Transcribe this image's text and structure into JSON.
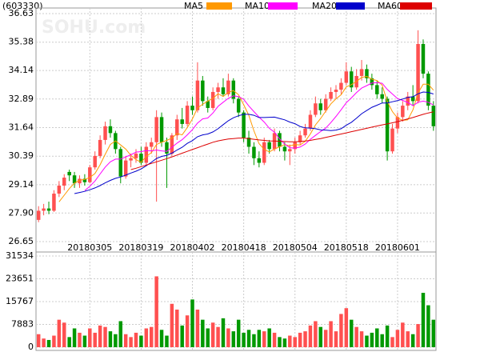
{
  "chart_data": {
    "type": "candlestick",
    "title": "(603330)",
    "watermark": "SOHU.com",
    "categories": [
      null,
      null,
      null,
      null,
      null,
      null,
      null,
      null,
      null,
      null,
      "20180305",
      null,
      null,
      null,
      null,
      null,
      null,
      null,
      null,
      null,
      "20180319",
      null,
      null,
      null,
      null,
      null,
      null,
      null,
      null,
      null,
      "20180402",
      null,
      null,
      null,
      null,
      null,
      null,
      null,
      null,
      null,
      "20180418",
      null,
      null,
      null,
      null,
      null,
      null,
      null,
      null,
      null,
      "20180504",
      null,
      null,
      null,
      null,
      null,
      null,
      null,
      null,
      null,
      "20180518",
      null,
      null,
      null,
      null,
      null,
      null,
      null,
      null,
      null,
      "20180601",
      null,
      null,
      null,
      null,
      null,
      null,
      null
    ],
    "open": [
      27.6,
      28.0,
      28.1,
      28.0,
      28.75,
      29.1,
      29.7,
      29.55,
      29.2,
      29.4,
      29.25,
      29.9,
      30.4,
      31.1,
      31.7,
      31.4,
      30.7,
      29.5,
      30.2,
      30.3,
      30.5,
      30.1,
      30.8,
      31.0,
      32.1,
      31.0,
      30.5,
      31.3,
      32.0,
      31.8,
      32.6,
      32.4,
      33.7,
      32.8,
      32.5,
      33.2,
      33.4,
      33.1,
      33.7,
      32.9,
      32.3,
      31.2,
      30.8,
      30.3,
      30.1,
      31.0,
      30.7,
      31.4,
      30.8,
      30.6,
      30.7,
      31.0,
      31.3,
      31.6,
      32.2,
      32.7,
      32.4,
      32.9,
      33.2,
      33.3,
      33.6,
      34.1,
      33.4,
      33.9,
      34.2,
      33.8,
      33.5,
      33.1,
      32.9,
      30.6,
      31.6,
      32.1,
      32.6,
      33.0,
      32.8,
      35.3,
      34.0,
      32.6
    ],
    "high": [
      28.2,
      28.3,
      28.4,
      28.9,
      29.3,
      29.6,
      29.8,
      29.7,
      29.55,
      29.6,
      30.0,
      30.6,
      31.3,
      31.9,
      32.0,
      31.5,
      30.8,
      30.4,
      30.5,
      30.7,
      30.8,
      31.0,
      31.2,
      32.4,
      32.3,
      31.2,
      31.4,
      32.2,
      32.5,
      32.8,
      33.0,
      34.5,
      33.9,
      33.0,
      33.4,
      33.6,
      33.8,
      34.0,
      33.8,
      33.0,
      32.4,
      31.5,
      31.0,
      30.6,
      31.2,
      31.1,
      31.6,
      31.5,
      31.0,
      30.9,
      31.2,
      31.5,
      31.8,
      32.4,
      33.0,
      32.9,
      33.1,
      33.4,
      33.5,
      33.8,
      34.5,
      34.3,
      34.2,
      34.6,
      34.4,
      34.0,
      33.7,
      33.4,
      33.0,
      31.8,
      32.3,
      32.8,
      33.2,
      33.5,
      35.9,
      35.5,
      34.1,
      32.8
    ],
    "low": [
      27.5,
      27.8,
      27.85,
      27.95,
      28.6,
      28.9,
      29.3,
      29.0,
      29.0,
      29.1,
      29.2,
      29.8,
      30.3,
      30.9,
      31.2,
      30.5,
      29.2,
      29.4,
      29.9,
      30.1,
      30.0,
      30.0,
      30.5,
      28.4,
      30.8,
      29.0,
      30.4,
      31.1,
      31.6,
      31.7,
      32.2,
      32.3,
      32.6,
      32.3,
      32.4,
      32.9,
      33.0,
      33.0,
      32.7,
      32.1,
      31.0,
      30.5,
      30.0,
      29.9,
      30.0,
      30.5,
      30.6,
      30.6,
      30.2,
      30.0,
      30.5,
      30.9,
      31.2,
      31.5,
      32.1,
      32.2,
      32.3,
      32.8,
      32.9,
      33.1,
      33.5,
      33.2,
      33.3,
      33.7,
      33.6,
      33.3,
      32.9,
      32.7,
      30.2,
      30.5,
      31.4,
      31.9,
      32.4,
      32.6,
      32.7,
      33.8,
      32.4,
      31.5
    ],
    "close": [
      28.0,
      28.1,
      28.0,
      28.75,
      29.1,
      29.45,
      29.55,
      29.2,
      29.4,
      29.25,
      29.9,
      30.4,
      31.1,
      31.7,
      31.4,
      30.7,
      29.5,
      30.2,
      30.3,
      30.5,
      30.1,
      30.8,
      31.0,
      32.1,
      31.0,
      30.5,
      31.3,
      32.0,
      31.8,
      32.6,
      32.4,
      33.7,
      32.8,
      32.5,
      33.2,
      33.4,
      33.1,
      33.7,
      32.9,
      32.3,
      31.2,
      30.8,
      30.3,
      30.1,
      31.0,
      30.7,
      31.4,
      30.8,
      30.6,
      30.7,
      31.0,
      31.3,
      31.6,
      32.2,
      32.7,
      32.4,
      32.9,
      33.2,
      33.3,
      33.6,
      34.1,
      33.4,
      33.9,
      34.2,
      33.8,
      33.5,
      33.1,
      32.9,
      30.6,
      31.6,
      32.1,
      32.6,
      33.0,
      32.8,
      35.3,
      34.0,
      32.6,
      31.7
    ],
    "volume": [
      4500,
      3000,
      2500,
      4000,
      9500,
      8500,
      3500,
      6500,
      5000,
      4000,
      6500,
      5000,
      7500,
      7000,
      5500,
      4500,
      9000,
      4500,
      3500,
      5000,
      4000,
      6500,
      7000,
      24500,
      6000,
      4000,
      15000,
      13000,
      7500,
      11000,
      16500,
      13000,
      9500,
      6500,
      8500,
      7000,
      10000,
      6500,
      5500,
      9500,
      5000,
      6000,
      4500,
      6000,
      5500,
      6500,
      5000,
      3500,
      3000,
      4000,
      3500,
      5000,
      5500,
      7500,
      9000,
      7000,
      6000,
      9000,
      5500,
      11500,
      13500,
      9500,
      7000,
      5500,
      4000,
      5000,
      6500,
      4500,
      7500,
      3500,
      6000,
      8500,
      5500,
      4500,
      8000,
      18800,
      14500,
      9500
    ],
    "up_color": "#ff5050",
    "down_color": "#009900",
    "series": [
      {
        "name": "MA5",
        "color": "#ff9900",
        "values": [
          null,
          null,
          null,
          null,
          28.39,
          28.68,
          28.97,
          29.21,
          29.34,
          29.37,
          29.46,
          29.63,
          30.01,
          30.47,
          30.9,
          31.06,
          30.88,
          30.7,
          30.42,
          30.24,
          30.12,
          30.38,
          30.54,
          30.9,
          31.0,
          31.08,
          31.18,
          31.38,
          31.32,
          31.64,
          32.02,
          32.5,
          32.66,
          32.8,
          32.92,
          33.12,
          33.0,
          33.18,
          33.26,
          33.08,
          32.64,
          32.18,
          31.5,
          30.94,
          30.68,
          30.58,
          30.7,
          30.8,
          30.9,
          30.84,
          30.9,
          30.88,
          31.04,
          31.36,
          31.76,
          32.04,
          32.36,
          32.68,
          32.9,
          33.08,
          33.42,
          33.52,
          33.66,
          33.84,
          33.88,
          33.76,
          33.7,
          33.5,
          32.78,
          32.34,
          32.06,
          31.96,
          31.98,
          32.42,
          33.16,
          33.54,
          33.54,
          33.28
        ]
      },
      {
        "name": "MA10",
        "color": "#ff00ff",
        "values": [
          null,
          null,
          null,
          null,
          null,
          null,
          null,
          null,
          null,
          28.88,
          29.07,
          29.3,
          29.61,
          29.91,
          30.14,
          30.26,
          30.26,
          30.36,
          30.45,
          30.57,
          30.59,
          30.63,
          30.62,
          30.66,
          30.62,
          30.6,
          30.78,
          30.96,
          31.11,
          31.32,
          31.55,
          31.84,
          32.02,
          32.06,
          32.28,
          32.57,
          32.75,
          32.92,
          33.03,
          33.0,
          32.88,
          32.59,
          32.34,
          32.1,
          31.88,
          31.61,
          31.44,
          31.15,
          30.92,
          30.76,
          30.74,
          30.79,
          30.92,
          31.13,
          31.3,
          31.47,
          31.62,
          31.86,
          32.13,
          32.42,
          32.73,
          32.94,
          33.17,
          33.37,
          33.48,
          33.59,
          33.61,
          33.58,
          33.31,
          33.11,
          32.91,
          32.83,
          32.74,
          32.6,
          32.75,
          32.8,
          32.75,
          32.63
        ]
      },
      {
        "name": "MA20",
        "color": "#0000cc",
        "values": [
          null,
          null,
          null,
          null,
          null,
          null,
          null,
          28.75,
          28.8,
          28.85,
          28.92,
          29.0,
          29.1,
          29.22,
          29.33,
          29.42,
          29.48,
          29.56,
          29.65,
          29.73,
          29.83,
          29.97,
          30.12,
          30.29,
          30.38,
          30.43,
          30.52,
          30.66,
          30.78,
          30.95,
          31.07,
          31.24,
          31.32,
          31.36,
          31.45,
          31.59,
          31.77,
          31.94,
          32.07,
          32.16,
          32.22,
          32.22,
          32.18,
          32.08,
          32.08,
          32.09,
          32.1,
          32.04,
          31.98,
          31.88,
          31.81,
          31.69,
          31.63,
          31.62,
          31.59,
          31.54,
          31.53,
          31.51,
          31.53,
          31.59,
          31.74,
          31.87,
          32.05,
          32.25,
          32.39,
          32.53,
          32.62,
          32.72,
          32.72,
          32.77,
          32.82,
          32.89,
          32.96,
          32.99,
          33.12,
          33.2,
          33.18,
          33.11
        ]
      },
      {
        "name": "MA60",
        "color": "#dd0000",
        "values": [
          null,
          null,
          null,
          null,
          null,
          null,
          null,
          null,
          null,
          null,
          null,
          null,
          null,
          null,
          null,
          null,
          null,
          null,
          29.8,
          29.86,
          29.93,
          30.0,
          30.07,
          30.14,
          30.21,
          30.28,
          30.36,
          30.44,
          30.52,
          30.6,
          30.68,
          30.76,
          30.84,
          30.92,
          31.0,
          31.06,
          31.1,
          31.14,
          31.16,
          31.18,
          31.18,
          31.16,
          31.13,
          31.1,
          31.08,
          31.06,
          31.05,
          31.04,
          31.03,
          31.02,
          31.02,
          31.03,
          31.05,
          31.08,
          31.12,
          31.16,
          31.21,
          31.26,
          31.31,
          31.36,
          31.41,
          31.46,
          31.51,
          31.56,
          31.61,
          31.66,
          31.71,
          31.76,
          31.8,
          31.85,
          31.9,
          31.96,
          32.02,
          32.08,
          32.15,
          32.22,
          32.28,
          32.33
        ]
      }
    ],
    "ylim": [
      26.65,
      36.63
    ],
    "yticks": [
      26.65,
      {
        "value": 27.9,
        "label": "27.90"
      },
      29.14,
      30.39,
      31.64,
      32.89,
      34.14,
      35.38,
      36.63
    ],
    "volume_ylim": [
      0,
      31534
    ],
    "volume_ticks": [
      0,
      7883,
      15767,
      23651,
      31534
    ],
    "grid": true
  }
}
